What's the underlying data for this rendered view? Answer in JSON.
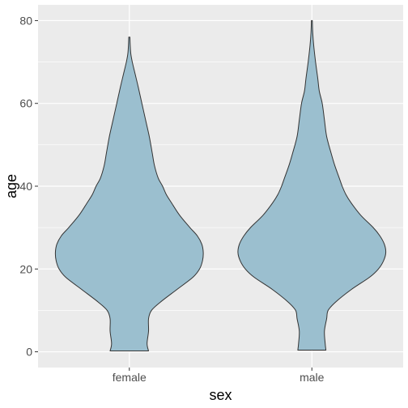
{
  "chart_data": {
    "type": "violin",
    "xlabel": "sex",
    "ylabel": "age",
    "categories": [
      "female",
      "male"
    ],
    "ylim": [
      -3.8,
      83.8
    ],
    "yticks": [
      0,
      20,
      40,
      60,
      80
    ],
    "grid": true,
    "colors": {
      "panel": "#ebebeb",
      "gridline": "#ffffff",
      "violin_fill": "#9bbfcf",
      "violin_stroke": "#333333"
    },
    "violins": [
      {
        "category": "female",
        "min": 0.2,
        "max": 76,
        "profile": [
          [
            0.2,
            0.26
          ],
          [
            2,
            0.24
          ],
          [
            5,
            0.26
          ],
          [
            8,
            0.26
          ],
          [
            10,
            0.3
          ],
          [
            12,
            0.42
          ],
          [
            15,
            0.64
          ],
          [
            18,
            0.86
          ],
          [
            20,
            0.95
          ],
          [
            22,
            0.99
          ],
          [
            24,
            1.0
          ],
          [
            26,
            0.98
          ],
          [
            28,
            0.92
          ],
          [
            30,
            0.82
          ],
          [
            33,
            0.68
          ],
          [
            36,
            0.57
          ],
          [
            38,
            0.5
          ],
          [
            40,
            0.45
          ],
          [
            42,
            0.39
          ],
          [
            45,
            0.34
          ],
          [
            48,
            0.31
          ],
          [
            52,
            0.27
          ],
          [
            56,
            0.22
          ],
          [
            60,
            0.17
          ],
          [
            64,
            0.12
          ],
          [
            67,
            0.08
          ],
          [
            70,
            0.04
          ],
          [
            72,
            0.02
          ],
          [
            74,
            0.012
          ],
          [
            76,
            0.008
          ]
        ]
      },
      {
        "category": "male",
        "min": 0.4,
        "max": 80,
        "profile": [
          [
            0.4,
            0.19
          ],
          [
            2,
            0.18
          ],
          [
            5,
            0.17
          ],
          [
            8,
            0.2
          ],
          [
            10,
            0.22
          ],
          [
            12,
            0.32
          ],
          [
            15,
            0.53
          ],
          [
            18,
            0.78
          ],
          [
            20,
            0.9
          ],
          [
            22,
            0.97
          ],
          [
            24,
            1.0
          ],
          [
            26,
            0.98
          ],
          [
            28,
            0.92
          ],
          [
            30,
            0.83
          ],
          [
            33,
            0.66
          ],
          [
            36,
            0.53
          ],
          [
            38,
            0.46
          ],
          [
            40,
            0.41
          ],
          [
            42,
            0.37
          ],
          [
            45,
            0.31
          ],
          [
            48,
            0.26
          ],
          [
            52,
            0.2
          ],
          [
            56,
            0.17
          ],
          [
            60,
            0.14
          ],
          [
            63,
            0.1
          ],
          [
            66,
            0.08
          ],
          [
            70,
            0.05
          ],
          [
            74,
            0.025
          ],
          [
            77,
            0.012
          ],
          [
            80,
            0.006
          ]
        ]
      }
    ]
  }
}
